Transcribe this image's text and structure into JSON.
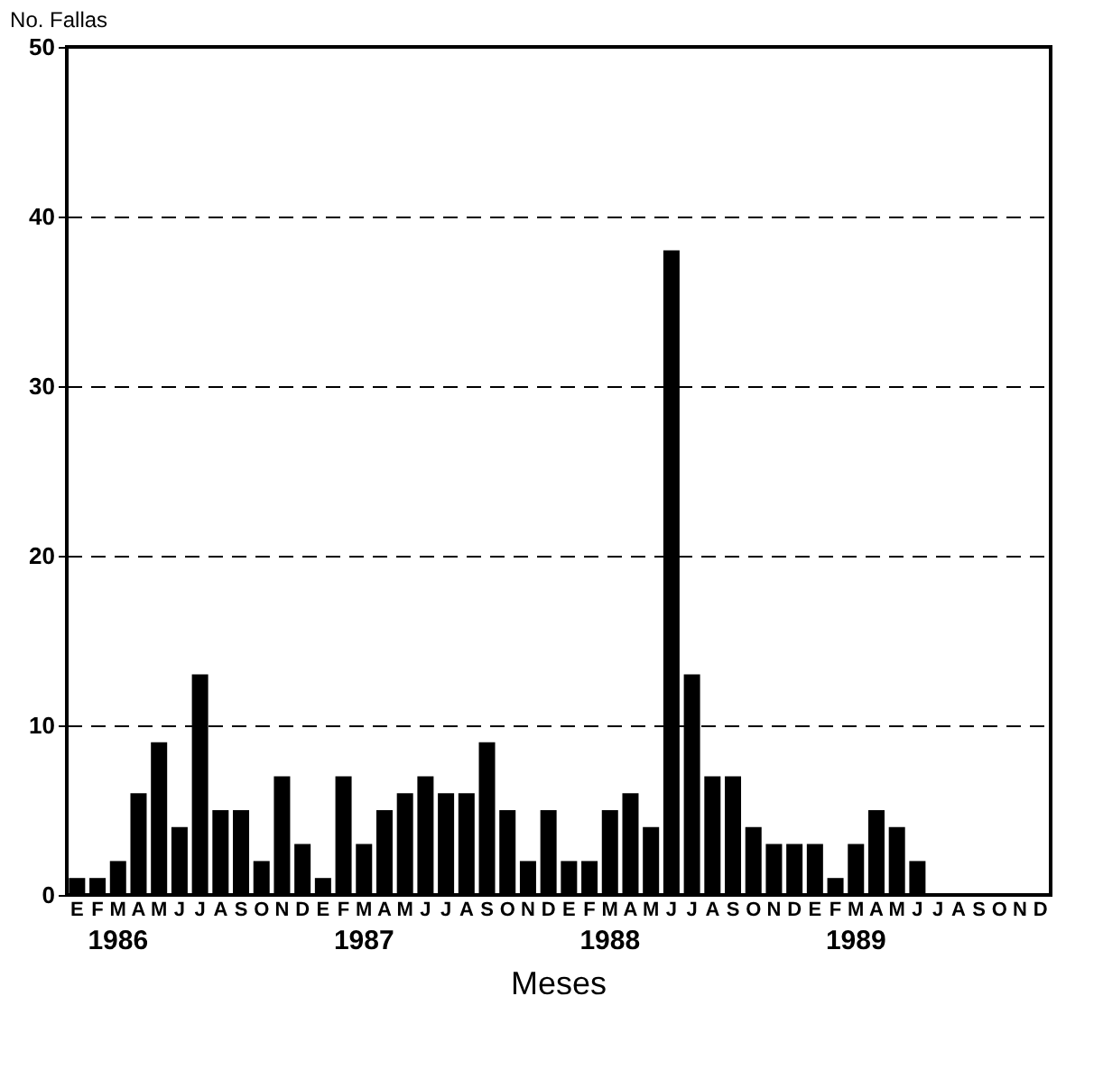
{
  "chart_data": {
    "type": "bar",
    "ylabel": "No. Fallas",
    "xlabel": "Meses",
    "categories": [
      "E",
      "F",
      "M",
      "A",
      "M",
      "J",
      "J",
      "A",
      "S",
      "O",
      "N",
      "D",
      "E",
      "F",
      "M",
      "A",
      "M",
      "J",
      "J",
      "A",
      "S",
      "O",
      "N",
      "D",
      "E",
      "F",
      "M",
      "A",
      "M",
      "J",
      "J",
      "A",
      "S",
      "O",
      "N",
      "D",
      "E",
      "F",
      "M",
      "A",
      "M",
      "J",
      "J",
      "A",
      "S",
      "O",
      "N",
      "D"
    ],
    "values": [
      1,
      1,
      2,
      6,
      9,
      4,
      13,
      5,
      5,
      2,
      7,
      3,
      1,
      7,
      3,
      5,
      6,
      7,
      6,
      6,
      9,
      5,
      2,
      5,
      2,
      2,
      5,
      6,
      4,
      38,
      13,
      7,
      7,
      4,
      3,
      3,
      3,
      1,
      3,
      5,
      4,
      2,
      0,
      0,
      0,
      0,
      0,
      0
    ],
    "color": "#000000",
    "ylim": [
      0,
      50
    ],
    "yticks": [
      0,
      10,
      20,
      30,
      40,
      50
    ],
    "grid": "y",
    "annotations": [
      "1986",
      "1987",
      "1988",
      "1989"
    ]
  }
}
